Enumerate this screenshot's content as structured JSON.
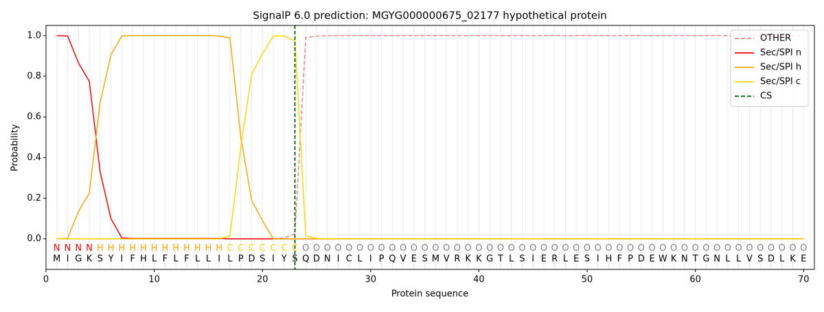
{
  "chart_data": {
    "type": "line",
    "title": "SignalP 6.0 prediction: MGYG000000675_02177 hypothetical protein",
    "x_label": "Protein sequence",
    "y_label": "Probability",
    "xlim": [
      0,
      71
    ],
    "ylim": [
      -0.15,
      1.05
    ],
    "xticks": [
      0,
      10,
      20,
      30,
      40,
      50,
      60,
      70
    ],
    "yticks": [
      {
        "value": 0,
        "label": "0.0"
      },
      {
        "value": 0.2,
        "label": "0.2"
      },
      {
        "value": 0.4,
        "label": "0.4"
      },
      {
        "value": 0.6,
        "label": "0.6"
      },
      {
        "value": 0.8,
        "label": "0.8"
      },
      {
        "value": 1,
        "label": "1.0"
      }
    ],
    "legend": "upper right",
    "x": [
      1,
      2,
      3,
      4,
      5,
      6,
      7,
      8,
      9,
      10,
      11,
      12,
      13,
      14,
      15,
      16,
      17,
      18,
      19,
      20,
      21,
      22,
      23,
      24,
      25,
      26,
      27,
      28,
      29,
      30,
      31,
      32,
      33,
      34,
      35,
      36,
      37,
      38,
      39,
      40,
      41,
      42,
      43,
      44,
      45,
      46,
      47,
      48,
      49,
      50,
      51,
      52,
      53,
      54,
      55,
      56,
      57,
      58,
      59,
      60,
      61,
      62,
      63,
      64,
      65,
      66,
      67,
      68,
      69,
      70
    ],
    "sequence": [
      "M",
      "I",
      "G",
      "K",
      "S",
      "Y",
      "I",
      "F",
      "H",
      "L",
      "F",
      "L",
      "F",
      "L",
      "L",
      "I",
      "L",
      "P",
      "D",
      "S",
      "I",
      "Y",
      "S",
      "Q",
      "D",
      "N",
      "I",
      "C",
      "L",
      "I",
      "P",
      "Q",
      "V",
      "E",
      "S",
      "M",
      "V",
      "R",
      "K",
      "K",
      "G",
      "T",
      "L",
      "S",
      "I",
      "E",
      "R",
      "L",
      "E",
      "S",
      "I",
      "H",
      "F",
      "P",
      "D",
      "E",
      "W",
      "K",
      "N",
      "T",
      "G",
      "N",
      "L",
      "L",
      "V",
      "S",
      "D",
      "L",
      "K",
      "E"
    ],
    "region_labels": [
      "N",
      "N",
      "N",
      "N",
      "H",
      "H",
      "H",
      "H",
      "H",
      "H",
      "H",
      "H",
      "H",
      "H",
      "H",
      "H",
      "C",
      "C",
      "C",
      "C",
      "C",
      "C",
      "C",
      "O",
      "O",
      "O",
      "O",
      "O",
      "O",
      "O",
      "O",
      "O",
      "O",
      "O",
      "O",
      "O",
      "O",
      "O",
      "O",
      "O",
      "O",
      "O",
      "O",
      "O",
      "O",
      "O",
      "O",
      "O",
      "O",
      "O",
      "O",
      "O",
      "O",
      "O",
      "O",
      "O",
      "O",
      "O",
      "O",
      "O",
      "O",
      "O",
      "O",
      "O",
      "O",
      "O",
      "O",
      "O",
      "O",
      "O"
    ],
    "region_colors": {
      "N": "#ff0000",
      "H": "#ffa500",
      "C": "#ffd700",
      "O": "#808080"
    },
    "series": [
      {
        "name": "OTHER",
        "color": "#f08080",
        "dashed": true,
        "values": [
          0,
          0,
          0,
          0,
          0,
          0,
          0,
          0,
          0,
          0,
          0,
          0,
          0,
          0,
          0,
          0,
          0,
          0,
          0,
          0,
          0,
          0.005,
          0.025,
          0.99,
          0.997,
          1,
          1,
          1,
          1,
          1,
          1,
          1,
          1,
          1,
          1,
          1,
          1,
          1,
          1,
          1,
          1,
          1,
          1,
          1,
          1,
          1,
          1,
          1,
          1,
          1,
          1,
          1,
          1,
          1,
          1,
          1,
          1,
          1,
          1,
          1,
          1,
          1,
          1,
          1,
          1,
          1,
          1,
          1,
          1,
          1
        ]
      },
      {
        "name": "Sec/SPI n",
        "color": "#ff0000",
        "dashed": false,
        "values": [
          1,
          0.998,
          0.865,
          0.775,
          0.33,
          0.1,
          0.005,
          0.002,
          0.002,
          0.002,
          0.002,
          0.002,
          0.002,
          0.002,
          0.002,
          0.002,
          0,
          0,
          0,
          0,
          0,
          0,
          0,
          0,
          0,
          0,
          0,
          0,
          0,
          0,
          0,
          0,
          0,
          0,
          0,
          0,
          0,
          0,
          0,
          0,
          0,
          0,
          0,
          0,
          0,
          0,
          0,
          0,
          0,
          0,
          0,
          0,
          0,
          0,
          0,
          0,
          0,
          0,
          0,
          0,
          0,
          0,
          0,
          0,
          0,
          0,
          0,
          0,
          0,
          0
        ]
      },
      {
        "name": "Sec/SPI h",
        "color": "#ffa500",
        "dashed": false,
        "values": [
          0,
          0.003,
          0.135,
          0.225,
          0.67,
          0.905,
          0.998,
          1,
          1,
          1,
          1,
          1,
          1,
          1,
          1,
          0.998,
          0.988,
          0.5,
          0.19,
          0.09,
          0,
          0,
          0,
          0,
          0,
          0,
          0,
          0,
          0,
          0,
          0,
          0,
          0,
          0,
          0,
          0,
          0,
          0,
          0,
          0,
          0,
          0,
          0,
          0,
          0,
          0,
          0,
          0,
          0,
          0,
          0,
          0,
          0,
          0,
          0,
          0,
          0,
          0,
          0,
          0,
          0,
          0,
          0,
          0,
          0,
          0,
          0,
          0,
          0,
          0
        ]
      },
      {
        "name": "Sec/SPI c",
        "color": "#ffd700",
        "dashed": false,
        "values": [
          0,
          0,
          0,
          0,
          0,
          0,
          0,
          0,
          0,
          0,
          0,
          0,
          0,
          0,
          0,
          0,
          0.015,
          0.45,
          0.81,
          0.91,
          0.998,
          0.998,
          0.975,
          0.015,
          0.002,
          0,
          0,
          0,
          0,
          0,
          0,
          0,
          0,
          0,
          0,
          0,
          0,
          0,
          0,
          0,
          0,
          0,
          0,
          0,
          0,
          0,
          0,
          0,
          0,
          0,
          0,
          0,
          0,
          0,
          0,
          0,
          0,
          0,
          0,
          0,
          0,
          0,
          0,
          0,
          0,
          0,
          0,
          0,
          0,
          0
        ]
      }
    ],
    "cs": {
      "name": "CS",
      "color": "#006400",
      "x": 23
    }
  }
}
